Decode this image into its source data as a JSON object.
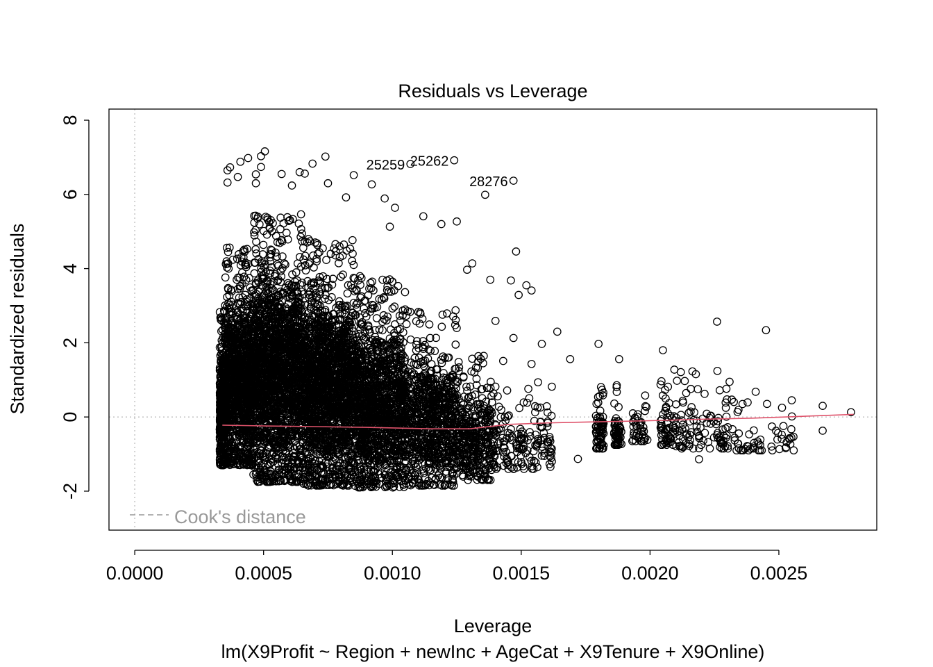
{
  "chart_data": {
    "type": "scatter",
    "title": "Residuals vs Leverage",
    "xlabel": "Leverage",
    "ylabel": "Standardized residuals",
    "subtitle": "lm(X9Profit ~ Region + newInc + AgeCat + X9Tenure + X9Online)",
    "xlim": [
      -0.0001,
      0.00288
    ],
    "ylim": [
      -3.05,
      8.3
    ],
    "x_ticks": [
      0.0,
      0.0005,
      0.001,
      0.0015,
      0.002,
      0.0025
    ],
    "x_tick_labels": [
      "0.0000",
      "0.0005",
      "0.0010",
      "0.0015",
      "0.0020",
      "0.0025"
    ],
    "y_ticks": [
      -2,
      0,
      2,
      4,
      6,
      8
    ],
    "y_tick_labels": [
      "-2",
      "0",
      "2",
      "4",
      "6",
      "8"
    ],
    "legend": {
      "label": "Cook's distance",
      "placement": "bottom-left",
      "color": "#999999"
    },
    "reference_lines": {
      "h": 0,
      "v": 0,
      "color": "#bebebe"
    },
    "point_color": "#000000",
    "smoother_color": "#DF536B",
    "smoother": {
      "x": [
        0.00034,
        0.0005,
        0.0007,
        0.0009,
        0.00115,
        0.0013,
        0.00145,
        0.0016,
        0.0018,
        0.002,
        0.0022,
        0.0024,
        0.0026,
        0.00279
      ],
      "y": [
        -0.22,
        -0.24,
        -0.26,
        -0.28,
        -0.32,
        -0.32,
        -0.2,
        -0.16,
        -0.13,
        -0.1,
        -0.06,
        -0.03,
        0.02,
        0.07
      ]
    },
    "labeled_points": [
      {
        "label": "25262",
        "x": 0.00124,
        "y": 6.92
      },
      {
        "label": "25259",
        "x": 0.00107,
        "y": 6.82
      },
      {
        "label": "28276",
        "x": 0.00147,
        "y": 6.37
      }
    ],
    "highlighted_points": [
      {
        "x": 0.000505,
        "y": 7.16
      },
      {
        "x": 0.00049,
        "y": 7.03
      },
      {
        "x": 0.00074,
        "y": 7.02
      },
      {
        "x": 0.00044,
        "y": 6.98
      },
      {
        "x": 0.00041,
        "y": 6.88
      },
      {
        "x": 0.00049,
        "y": 6.74
      },
      {
        "x": 0.00069,
        "y": 6.83
      },
      {
        "x": 0.00037,
        "y": 6.73
      },
      {
        "x": 0.00036,
        "y": 6.65
      },
      {
        "x": 0.00047,
        "y": 6.54
      },
      {
        "x": 0.00064,
        "y": 6.6
      },
      {
        "x": 0.00057,
        "y": 6.55
      },
      {
        "x": 0.00036,
        "y": 6.32
      },
      {
        "x": 0.00047,
        "y": 6.3
      },
      {
        "x": 0.00075,
        "y": 6.3
      },
      {
        "x": 0.00085,
        "y": 6.52
      },
      {
        "x": 0.00092,
        "y": 6.27
      },
      {
        "x": 0.00136,
        "y": 5.99
      },
      {
        "x": 0.00125,
        "y": 5.27
      },
      {
        "x": 0.00148,
        "y": 4.46
      },
      {
        "x": 0.00226,
        "y": 2.57
      },
      {
        "x": 0.00245,
        "y": 2.34
      },
      {
        "x": 0.00164,
        "y": 2.3
      },
      {
        "x": 0.0018,
        "y": 1.97
      },
      {
        "x": 0.00205,
        "y": 1.8
      },
      {
        "x": 0.00169,
        "y": 1.56
      },
      {
        "x": 0.00188,
        "y": 1.56
      },
      {
        "x": 0.00278,
        "y": 0.13
      },
      {
        "x": 0.00267,
        "y": 0.3
      },
      {
        "x": 0.00267,
        "y": -0.37
      },
      {
        "x": 0.00255,
        "y": 0.45
      },
      {
        "x": 0.00241,
        "y": 0.68
      },
      {
        "x": 0.00219,
        "y": -1.14
      },
      {
        "x": 0.0024,
        "y": -0.84
      },
      {
        "x": 0.00253,
        "y": -0.68
      },
      {
        "x": 0.00172,
        "y": -1.13
      },
      {
        "x": 0.00154,
        "y": 3.41
      },
      {
        "x": 0.00154,
        "y": 1.43
      },
      {
        "x": 0.00158,
        "y": 1.97
      },
      {
        "x": 0.0014,
        "y": 2.59
      },
      {
        "x": 0.00143,
        "y": 1.51
      },
      {
        "x": 0.00147,
        "y": 2.13
      },
      {
        "x": 0.00138,
        "y": 3.7
      },
      {
        "x": 0.00146,
        "y": 3.68
      },
      {
        "x": 0.00149,
        "y": 3.29
      },
      {
        "x": 0.00152,
        "y": 3.55
      },
      {
        "x": 0.00129,
        "y": 3.97
      },
      {
        "x": 0.00131,
        "y": 4.14
      },
      {
        "x": 0.00101,
        "y": 5.64
      },
      {
        "x": 0.00112,
        "y": 5.41
      },
      {
        "x": 0.00099,
        "y": 5.13
      },
      {
        "x": 0.00119,
        "y": 5.2
      },
      {
        "x": 0.00082,
        "y": 5.92
      },
      {
        "x": 0.00097,
        "y": 5.89
      },
      {
        "x": 0.00061,
        "y": 6.24
      },
      {
        "x": 0.00066,
        "y": 6.56
      },
      {
        "x": 0.0004,
        "y": 6.47
      }
    ],
    "point_clouds": [
      {
        "x_range": [
          0.00033,
          0.00035
        ],
        "y_range": [
          -1.3,
          2.9
        ],
        "count": 420
      },
      {
        "x_range": [
          0.00035,
          0.00046
        ],
        "y_range": [
          -1.3,
          4.6
        ],
        "count": 1100
      },
      {
        "x_range": [
          0.00046,
          0.00065
        ],
        "y_range": [
          -1.75,
          5.5
        ],
        "count": 1800
      },
      {
        "x_range": [
          0.00065,
          0.00085
        ],
        "y_range": [
          -1.85,
          4.8
        ],
        "count": 1700
      },
      {
        "x_range": [
          0.00085,
          0.00105
        ],
        "y_range": [
          -1.9,
          3.8
        ],
        "count": 1300
      },
      {
        "x_range": [
          0.00105,
          0.00125
        ],
        "y_range": [
          -1.85,
          2.9
        ],
        "count": 800
      },
      {
        "x_range": [
          0.00125,
          0.0014
        ],
        "y_range": [
          -1.7,
          1.7
        ],
        "count": 380
      },
      {
        "x_range": [
          0.0014,
          0.00162
        ],
        "y_range": [
          -1.4,
          1.0
        ],
        "count": 150
      },
      {
        "x_range": [
          0.00179,
          0.00182
        ],
        "y_range": [
          -0.85,
          1.2
        ],
        "count": 70
      },
      {
        "x_range": [
          0.00186,
          0.00189
        ],
        "y_range": [
          -0.75,
          0.9
        ],
        "count": 55
      },
      {
        "x_range": [
          0.00193,
          0.00199
        ],
        "y_range": [
          -0.65,
          1.0
        ],
        "count": 40
      },
      {
        "x_range": [
          0.00204,
          0.00209
        ],
        "y_range": [
          -0.75,
          1.0
        ],
        "count": 55
      },
      {
        "x_range": [
          0.00209,
          0.00232
        ],
        "y_range": [
          -0.85,
          1.3
        ],
        "count": 110
      },
      {
        "x_range": [
          0.00232,
          0.00256
        ],
        "y_range": [
          -0.9,
          0.7
        ],
        "count": 55
      }
    ]
  }
}
